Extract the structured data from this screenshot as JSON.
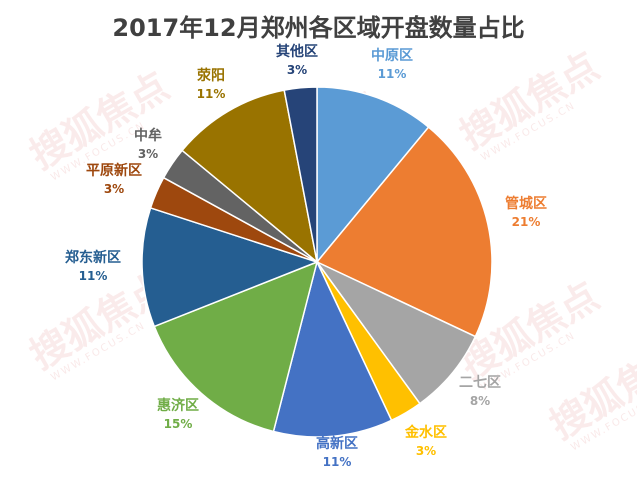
{
  "chart_data": {
    "type": "pie",
    "title": "2017年12月郑州各区域开盘数量占比",
    "slices": [
      {
        "name": "中原区",
        "percent_label": "11%",
        "value": 11,
        "color": "#5b9bd5"
      },
      {
        "name": "管城区",
        "percent_label": "21%",
        "value": 21,
        "color": "#ed7d31"
      },
      {
        "name": "二七区",
        "percent_label": "8%",
        "value": 8,
        "color": "#a5a5a5"
      },
      {
        "name": "金水区",
        "percent_label": "3%",
        "value": 3,
        "color": "#ffc000"
      },
      {
        "name": "高新区",
        "percent_label": "11%",
        "value": 11,
        "color": "#4472c4"
      },
      {
        "name": "惠济区",
        "percent_label": "15%",
        "value": 15,
        "color": "#70ad47"
      },
      {
        "name": "郑东新区",
        "percent_label": "11%",
        "value": 11,
        "color": "#255e91"
      },
      {
        "name": "平原新区",
        "percent_label": "3%",
        "value": 3,
        "color": "#9e480e"
      },
      {
        "name": "中牟",
        "percent_label": "3%",
        "value": 3,
        "color": "#636363"
      },
      {
        "name": "荥阳",
        "percent_label": "11%",
        "value": 11,
        "color": "#997300"
      },
      {
        "name": "其他区",
        "percent_label": "3%",
        "value": 3,
        "color": "#264478"
      }
    ],
    "label_colors": {
      "中原区": "#5b9bd5",
      "管城区": "#ed7d31",
      "二七区": "#a5a5a5",
      "金水区": "#ffc000",
      "高新区": "#4472c4",
      "惠济区": "#70ad47",
      "郑东新区": "#255e91",
      "平原新区": "#9e480e",
      "中牟": "#636363",
      "荥阳": "#997300",
      "其他区": "#264478"
    },
    "legend": "none"
  },
  "watermark": {
    "text": "搜狐焦点",
    "domain": "WWW.FOCUS.CN",
    "color": "#d44a4a"
  }
}
